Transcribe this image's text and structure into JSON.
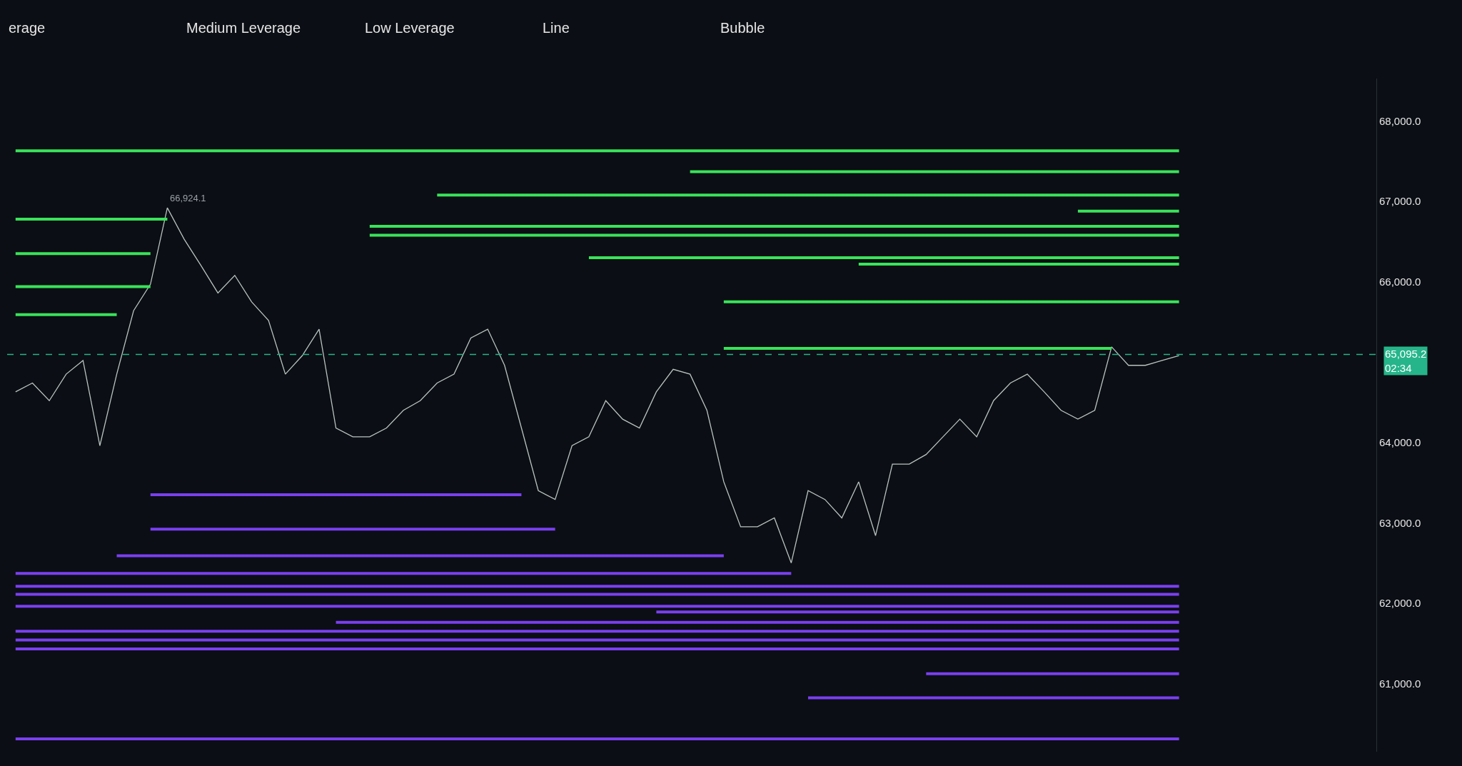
{
  "chart_data": {
    "type": "line",
    "categories": [
      null,
      null,
      null,
      null,
      null,
      null,
      null,
      null,
      null,
      null,
      null,
      null,
      null,
      null,
      null,
      null,
      null,
      null,
      null,
      null,
      null,
      null,
      null,
      null,
      null,
      null,
      null,
      null,
      null,
      null,
      null,
      null,
      null,
      null,
      null,
      null,
      null,
      null,
      null,
      null,
      null,
      null,
      null,
      null,
      null,
      null,
      null,
      null,
      null,
      null,
      null,
      null,
      null,
      null,
      null,
      null,
      null,
      null,
      null,
      null,
      null,
      null,
      null,
      null,
      null,
      null,
      null,
      null,
      null,
      null
    ],
    "series": [
      {
        "color": "#b9c4bf",
        "values": [
          64630,
          64740,
          64520,
          64850,
          65020,
          63960,
          64850,
          65640,
          65970,
          66920,
          66530,
          66200,
          65860,
          66080,
          65750,
          65520,
          64850,
          65080,
          65410,
          64180,
          64070,
          64070,
          64180,
          64400,
          64520,
          64740,
          64850,
          65300,
          65410,
          64960,
          64180,
          63400,
          63290,
          63960,
          64070,
          64520,
          64290,
          64180,
          64630,
          64910,
          64850,
          64400,
          63510,
          62950,
          62950,
          63060,
          62500,
          63400,
          63290,
          63060,
          63510,
          62840,
          63730,
          63730,
          63850,
          64070,
          64290,
          64070,
          64520,
          64740,
          64850,
          64630,
          64400,
          64290,
          64400,
          65190,
          64960,
          64960,
          65020,
          65080
        ]
      },
      {
        "color": "#39e35a",
        "values": [
          67630,
          67630,
          67630,
          67630,
          67630,
          67630,
          67630,
          67630,
          67630,
          67630,
          67630,
          67630,
          67630,
          67630,
          67630,
          67630,
          67630,
          67630,
          67630,
          67630,
          67630,
          67630,
          67630,
          67630,
          67630,
          67630,
          67630,
          67630,
          67630,
          67630,
          67630,
          67630,
          67630,
          67630,
          67630,
          67630,
          67630,
          67630,
          67630,
          67630,
          67630,
          67630,
          67630,
          67630,
          67630,
          67630,
          67630,
          67630,
          67630,
          67630,
          67630,
          67630,
          67630,
          67630,
          67630,
          67630,
          67630,
          67630,
          67630,
          67630,
          67630,
          67630,
          67630,
          67630,
          67630,
          67630,
          67630,
          67630,
          67630,
          67630
        ]
      },
      {
        "color": "#39e35a",
        "values": [
          null,
          null,
          null,
          null,
          null,
          null,
          null,
          null,
          null,
          null,
          null,
          null,
          null,
          null,
          null,
          null,
          null,
          null,
          null,
          null,
          null,
          null,
          null,
          null,
          null,
          null,
          null,
          null,
          null,
          null,
          null,
          null,
          null,
          null,
          null,
          null,
          null,
          null,
          null,
          null,
          67370,
          67370,
          67370,
          67370,
          67370,
          67370,
          67370,
          67370,
          67370,
          67370,
          67370,
          67370,
          67370,
          67370,
          67370,
          67370,
          67370,
          67370,
          67370,
          67370,
          67370,
          67370,
          67370,
          67370,
          67370,
          67370,
          67370,
          67370,
          67370,
          67370
        ]
      },
      {
        "color": "#39e35a",
        "values": [
          null,
          null,
          null,
          null,
          null,
          null,
          null,
          null,
          null,
          null,
          null,
          null,
          null,
          null,
          null,
          null,
          null,
          null,
          null,
          null,
          null,
          null,
          null,
          null,
          null,
          67080,
          67080,
          67080,
          67080,
          67080,
          67080,
          67080,
          67080,
          67080,
          67080,
          67080,
          67080,
          67080,
          67080,
          67080,
          67080,
          67080,
          67080,
          67080,
          67080,
          67080,
          67080,
          67080,
          67080,
          67080,
          67080,
          67080,
          67080,
          67080,
          67080,
          67080,
          67080,
          67080,
          67080,
          67080,
          67080,
          67080,
          67080,
          67080,
          67080,
          67080,
          67080,
          67080,
          67080,
          67080
        ]
      },
      {
        "color": "#39e35a",
        "values": [
          null,
          null,
          null,
          null,
          null,
          null,
          null,
          null,
          null,
          null,
          null,
          null,
          null,
          null,
          null,
          null,
          null,
          null,
          null,
          null,
          null,
          null,
          null,
          null,
          null,
          null,
          null,
          null,
          null,
          null,
          null,
          null,
          null,
          null,
          null,
          null,
          null,
          null,
          null,
          null,
          null,
          null,
          null,
          null,
          null,
          null,
          null,
          null,
          null,
          null,
          null,
          null,
          null,
          null,
          null,
          null,
          null,
          null,
          null,
          null,
          null,
          null,
          null,
          66880,
          66880,
          66880,
          66880,
          66880,
          66880,
          66880
        ]
      },
      {
        "color": "#39e35a",
        "values": [
          null,
          null,
          null,
          null,
          null,
          null,
          null,
          null,
          null,
          null,
          null,
          null,
          null,
          null,
          null,
          null,
          null,
          null,
          null,
          null,
          null,
          66690,
          66690,
          66690,
          66690,
          66690,
          66690,
          66690,
          66690,
          66690,
          66690,
          66690,
          66690,
          66690,
          66690,
          66690,
          66690,
          66690,
          66690,
          66690,
          66690,
          66690,
          66690,
          66690,
          66690,
          66690,
          66690,
          66690,
          66690,
          66690,
          66690,
          66690,
          66690,
          66690,
          66690,
          66690,
          66690,
          66690,
          66690,
          66690,
          66690,
          66690,
          66690,
          66690,
          66690,
          66690,
          66690,
          66690,
          66690,
          66690
        ]
      },
      {
        "color": "#39e35a",
        "values": [
          null,
          null,
          null,
          null,
          null,
          null,
          null,
          null,
          null,
          null,
          null,
          null,
          null,
          null,
          null,
          null,
          null,
          null,
          null,
          null,
          null,
          66580,
          66580,
          66580,
          66580,
          66580,
          66580,
          66580,
          66580,
          66580,
          66580,
          66580,
          66580,
          66580,
          66580,
          66580,
          66580,
          66580,
          66580,
          66580,
          66580,
          66580,
          66580,
          66580,
          66580,
          66580,
          66580,
          66580,
          66580,
          66580,
          66580,
          66580,
          66580,
          66580,
          66580,
          66580,
          66580,
          66580,
          66580,
          66580,
          66580,
          66580,
          66580,
          66580,
          66580,
          66580,
          66580,
          66580,
          66580,
          66580
        ]
      },
      {
        "color": "#39e35a",
        "values": [
          null,
          null,
          null,
          null,
          null,
          null,
          null,
          null,
          null,
          null,
          null,
          null,
          null,
          null,
          null,
          null,
          null,
          null,
          null,
          null,
          null,
          null,
          null,
          null,
          null,
          null,
          null,
          null,
          null,
          null,
          null,
          null,
          null,
          null,
          66300,
          66300,
          66300,
          66300,
          66300,
          66300,
          66300,
          66300,
          66300,
          66300,
          66300,
          66300,
          66300,
          66300,
          66300,
          66300,
          66300,
          66300,
          66300,
          66300,
          66300,
          66300,
          66300,
          66300,
          66300,
          66300,
          66300,
          66300,
          66300,
          66300,
          66300,
          66300,
          66300,
          66300,
          66300,
          66300
        ]
      },
      {
        "color": "#39e35a",
        "values": [
          null,
          null,
          null,
          null,
          null,
          null,
          null,
          null,
          null,
          null,
          null,
          null,
          null,
          null,
          null,
          null,
          null,
          null,
          null,
          null,
          null,
          null,
          null,
          null,
          null,
          null,
          null,
          null,
          null,
          null,
          null,
          null,
          null,
          null,
          null,
          null,
          null,
          null,
          null,
          null,
          null,
          null,
          null,
          null,
          null,
          null,
          null,
          null,
          null,
          null,
          66220,
          66220,
          66220,
          66220,
          66220,
          66220,
          66220,
          66220,
          66220,
          66220,
          66220,
          66220,
          66220,
          66220,
          66220,
          66220,
          66220,
          66220,
          66220,
          66220
        ]
      },
      {
        "color": "#39e35a",
        "values": [
          null,
          null,
          null,
          null,
          null,
          null,
          null,
          null,
          null,
          null,
          null,
          null,
          null,
          null,
          null,
          null,
          null,
          null,
          null,
          null,
          null,
          null,
          null,
          null,
          null,
          null,
          null,
          null,
          null,
          null,
          null,
          null,
          null,
          null,
          null,
          null,
          null,
          null,
          null,
          null,
          null,
          null,
          65750,
          65750,
          65750,
          65750,
          65750,
          65750,
          65750,
          65750,
          65750,
          65750,
          65750,
          65750,
          65750,
          65750,
          65750,
          65750,
          65750,
          65750,
          65750,
          65750,
          65750,
          65750,
          65750,
          65750,
          65750,
          65750,
          65750,
          65750
        ]
      },
      {
        "color": "#39e35a",
        "values": [
          null,
          null,
          null,
          null,
          null,
          null,
          null,
          null,
          null,
          null,
          null,
          null,
          null,
          null,
          null,
          null,
          null,
          null,
          null,
          null,
          null,
          null,
          null,
          null,
          null,
          null,
          null,
          null,
          null,
          null,
          null,
          null,
          null,
          null,
          null,
          null,
          null,
          null,
          null,
          null,
          null,
          null,
          65170,
          65170,
          65170,
          65170,
          65170,
          65170,
          65170,
          65170,
          65170,
          65170,
          65170,
          65170,
          65170,
          65170,
          65170,
          65170,
          65170,
          65170,
          65170,
          65170,
          65170,
          65170,
          65170,
          65170,
          null,
          null,
          null,
          null
        ]
      },
      {
        "color": "#39e35a",
        "values": [
          66780,
          66780,
          66780,
          66780,
          66780,
          66780,
          66780,
          66780,
          66780,
          66780,
          null,
          null,
          null,
          null,
          null,
          null,
          null,
          null,
          null,
          null,
          null,
          null,
          null,
          null,
          null,
          null,
          null,
          null,
          null,
          null,
          null,
          null,
          null,
          null,
          null,
          null,
          null,
          null,
          null,
          null,
          null,
          null,
          null,
          null,
          null,
          null,
          null,
          null,
          null,
          null,
          null,
          null,
          null,
          null,
          null,
          null,
          null,
          null,
          null,
          null,
          null,
          null,
          null,
          null,
          null,
          null,
          null,
          null,
          null,
          null
        ]
      },
      {
        "color": "#39e35a",
        "values": [
          66350,
          66350,
          66350,
          66350,
          66350,
          66350,
          66350,
          66350,
          66350,
          null,
          null,
          null,
          null,
          null,
          null,
          null,
          null,
          null,
          null,
          null,
          null,
          null,
          null,
          null,
          null,
          null,
          null,
          null,
          null,
          null,
          null,
          null,
          null,
          null,
          null,
          null,
          null,
          null,
          null,
          null,
          null,
          null,
          null,
          null,
          null,
          null,
          null,
          null,
          null,
          null,
          null,
          null,
          null,
          null,
          null,
          null,
          null,
          null,
          null,
          null,
          null,
          null,
          null,
          null,
          null,
          null,
          null,
          null,
          null,
          null
        ]
      },
      {
        "color": "#39e35a",
        "values": [
          65940,
          65940,
          65940,
          65940,
          65940,
          65940,
          65940,
          65940,
          65940,
          null,
          null,
          null,
          null,
          null,
          null,
          null,
          null,
          null,
          null,
          null,
          null,
          null,
          null,
          null,
          null,
          null,
          null,
          null,
          null,
          null,
          null,
          null,
          null,
          null,
          null,
          null,
          null,
          null,
          null,
          null,
          null,
          null,
          null,
          null,
          null,
          null,
          null,
          null,
          null,
          null,
          null,
          null,
          null,
          null,
          null,
          null,
          null,
          null,
          null,
          null,
          null,
          null,
          null,
          null,
          null,
          null,
          null,
          null,
          null,
          null
        ]
      },
      {
        "color": "#39e35a",
        "values": [
          65590,
          65590,
          65590,
          65590,
          65590,
          65590,
          65590,
          null,
          null,
          null,
          null,
          null,
          null,
          null,
          null,
          null,
          null,
          null,
          null,
          null,
          null,
          null,
          null,
          null,
          null,
          null,
          null,
          null,
          null,
          null,
          null,
          null,
          null,
          null,
          null,
          null,
          null,
          null,
          null,
          null,
          null,
          null,
          null,
          null,
          null,
          null,
          null,
          null,
          null,
          null,
          null,
          null,
          null,
          null,
          null,
          null,
          null,
          null,
          null,
          null,
          null,
          null,
          null,
          null,
          null,
          null,
          null,
          null,
          null,
          null
        ]
      },
      {
        "color": "#7a3ff0",
        "values": [
          null,
          null,
          null,
          null,
          null,
          null,
          null,
          null,
          63350,
          63350,
          63350,
          63350,
          63350,
          63350,
          63350,
          63350,
          63350,
          63350,
          63350,
          63350,
          63350,
          63350,
          63350,
          63350,
          63350,
          63350,
          63350,
          63350,
          63350,
          63350,
          63350,
          null,
          null,
          null,
          null,
          null,
          null,
          null,
          null,
          null,
          null,
          null,
          null,
          null,
          null,
          null,
          null,
          null,
          null,
          null,
          null,
          null,
          null,
          null,
          null,
          null,
          null,
          null,
          null,
          null,
          null,
          null,
          null,
          null,
          null,
          null,
          null,
          null,
          null,
          null
        ]
      },
      {
        "color": "#7a3ff0",
        "values": [
          null,
          null,
          null,
          null,
          null,
          null,
          null,
          null,
          62920,
          62920,
          62920,
          62920,
          62920,
          62920,
          62920,
          62920,
          62920,
          62920,
          62920,
          62920,
          62920,
          62920,
          62920,
          62920,
          62920,
          62920,
          62920,
          62920,
          62920,
          62920,
          62920,
          62920,
          62920,
          null,
          null,
          null,
          null,
          null,
          null,
          null,
          null,
          null,
          null,
          null,
          null,
          null,
          null,
          null,
          null,
          null,
          null,
          null,
          null,
          null,
          null,
          null,
          null,
          null,
          null,
          null,
          null,
          null,
          null,
          null,
          null,
          null,
          null,
          null,
          null,
          null
        ]
      },
      {
        "color": "#7a3ff0",
        "values": [
          null,
          null,
          null,
          null,
          null,
          null,
          62590,
          62590,
          62590,
          62590,
          62590,
          62590,
          62590,
          62590,
          62590,
          62590,
          62590,
          62590,
          62590,
          62590,
          62590,
          62590,
          62590,
          62590,
          62590,
          62590,
          62590,
          62590,
          62590,
          62590,
          62590,
          62590,
          62590,
          62590,
          62590,
          62590,
          62590,
          62590,
          62590,
          62590,
          62590,
          62590,
          62590,
          null,
          null,
          null,
          null,
          null,
          null,
          null,
          null,
          null,
          null,
          null,
          null,
          null,
          null,
          null,
          null,
          null,
          null,
          null,
          null,
          null,
          null,
          null,
          null,
          null,
          null,
          null
        ]
      },
      {
        "color": "#7a3ff0",
        "values": [
          62370,
          62370,
          62370,
          62370,
          62370,
          62370,
          62370,
          62370,
          62370,
          62370,
          62370,
          62370,
          62370,
          62370,
          62370,
          62370,
          62370,
          62370,
          62370,
          62370,
          62370,
          62370,
          62370,
          62370,
          62370,
          62370,
          62370,
          62370,
          62370,
          62370,
          62370,
          62370,
          62370,
          62370,
          62370,
          62370,
          62370,
          62370,
          62370,
          62370,
          62370,
          62370,
          62370,
          62370,
          62370,
          62370,
          62370,
          null,
          null,
          null,
          null,
          null,
          null,
          null,
          null,
          null,
          null,
          null,
          null,
          null,
          null,
          null,
          null,
          null,
          null,
          null,
          null,
          null,
          null,
          null
        ]
      },
      {
        "color": "#7a3ff0",
        "values": [
          62210,
          62210,
          62210,
          62210,
          62210,
          62210,
          62210,
          62210,
          62210,
          62210,
          62210,
          62210,
          62210,
          62210,
          62210,
          62210,
          62210,
          62210,
          62210,
          62210,
          62210,
          62210,
          62210,
          62210,
          62210,
          62210,
          62210,
          62210,
          62210,
          62210,
          62210,
          62210,
          62210,
          62210,
          62210,
          62210,
          62210,
          62210,
          62210,
          62210,
          62210,
          62210,
          62210,
          62210,
          62210,
          62210,
          62210,
          62210,
          62210,
          62210,
          62210,
          62210,
          62210,
          62210,
          62210,
          62210,
          62210,
          62210,
          62210,
          62210,
          62210,
          62210,
          62210,
          62210,
          62210,
          62210,
          62210,
          62210,
          62210,
          62210
        ]
      },
      {
        "color": "#7a3ff0",
        "values": [
          62110,
          62110,
          62110,
          62110,
          62110,
          62110,
          62110,
          62110,
          62110,
          62110,
          62110,
          62110,
          62110,
          62110,
          62110,
          62110,
          62110,
          62110,
          62110,
          62110,
          62110,
          62110,
          62110,
          62110,
          62110,
          62110,
          62110,
          62110,
          62110,
          62110,
          62110,
          62110,
          62110,
          62110,
          62110,
          62110,
          62110,
          62110,
          62110,
          62110,
          62110,
          62110,
          62110,
          62110,
          62110,
          62110,
          62110,
          62110,
          62110,
          62110,
          62110,
          62110,
          62110,
          62110,
          62110,
          62110,
          62110,
          62110,
          62110,
          62110,
          62110,
          62110,
          62110,
          62110,
          62110,
          62110,
          62110,
          62110,
          62110,
          62110
        ]
      },
      {
        "color": "#7a3ff0",
        "values": [
          61960,
          61960,
          61960,
          61960,
          61960,
          61960,
          61960,
          61960,
          61960,
          61960,
          61960,
          61960,
          61960,
          61960,
          61960,
          61960,
          61960,
          61960,
          61960,
          61960,
          61960,
          61960,
          61960,
          61960,
          61960,
          61960,
          61960,
          61960,
          61960,
          61960,
          61960,
          61960,
          61960,
          61960,
          61960,
          61960,
          61960,
          61960,
          61960,
          61960,
          61960,
          61960,
          61960,
          61960,
          61960,
          61960,
          61960,
          61960,
          61960,
          61960,
          61960,
          61960,
          61960,
          61960,
          61960,
          61960,
          61960,
          61960,
          61960,
          61960,
          61960,
          61960,
          61960,
          61960,
          61960,
          61960,
          61960,
          61960,
          61960,
          61960
        ]
      },
      {
        "color": "#7a3ff0",
        "values": [
          null,
          null,
          null,
          null,
          null,
          null,
          null,
          null,
          null,
          null,
          null,
          null,
          null,
          null,
          null,
          null,
          null,
          null,
          null,
          null,
          null,
          null,
          null,
          null,
          null,
          null,
          null,
          null,
          null,
          null,
          null,
          null,
          null,
          null,
          null,
          null,
          null,
          null,
          61890,
          61890,
          61890,
          61890,
          61890,
          61890,
          61890,
          61890,
          61890,
          61890,
          61890,
          61890,
          61890,
          61890,
          61890,
          61890,
          61890,
          61890,
          61890,
          61890,
          61890,
          61890,
          61890,
          61890,
          61890,
          61890,
          61890,
          61890,
          61890,
          61890,
          61890,
          61890
        ]
      },
      {
        "color": "#7a3ff0",
        "values": [
          null,
          null,
          null,
          null,
          null,
          null,
          null,
          null,
          null,
          null,
          null,
          null,
          null,
          null,
          null,
          null,
          null,
          null,
          null,
          61760,
          61760,
          61760,
          61760,
          61760,
          61760,
          61760,
          61760,
          61760,
          61760,
          61760,
          61760,
          61760,
          61760,
          61760,
          61760,
          61760,
          61760,
          61760,
          61760,
          61760,
          61760,
          61760,
          61760,
          61760,
          61760,
          61760,
          61760,
          61760,
          61760,
          61760,
          61760,
          61760,
          61760,
          61760,
          61760,
          61760,
          61760,
          61760,
          61760,
          61760,
          61760,
          61760,
          61760,
          61760,
          61760,
          61760,
          61760,
          61760,
          61760,
          61760
        ]
      },
      {
        "color": "#7a3ff0",
        "values": [
          61650,
          61650,
          61650,
          61650,
          61650,
          61650,
          61650,
          61650,
          61650,
          61650,
          61650,
          61650,
          61650,
          61650,
          61650,
          61650,
          61650,
          61650,
          61650,
          61650,
          61650,
          61650,
          61650,
          61650,
          61650,
          61650,
          61650,
          61650,
          61650,
          61650,
          61650,
          61650,
          61650,
          61650,
          61650,
          61650,
          61650,
          61650,
          61650,
          61650,
          61650,
          61650,
          61650,
          61650,
          61650,
          61650,
          61650,
          61650,
          61650,
          61650,
          61650,
          61650,
          61650,
          61650,
          61650,
          61650,
          61650,
          61650,
          61650,
          61650,
          61650,
          61650,
          61650,
          61650,
          61650,
          61650,
          61650,
          61650,
          61650,
          61650
        ]
      },
      {
        "color": "#7a3ff0",
        "values": [
          61540,
          61540,
          61540,
          61540,
          61540,
          61540,
          61540,
          61540,
          61540,
          61540,
          61540,
          61540,
          61540,
          61540,
          61540,
          61540,
          61540,
          61540,
          61540,
          61540,
          61540,
          61540,
          61540,
          61540,
          61540,
          61540,
          61540,
          61540,
          61540,
          61540,
          61540,
          61540,
          61540,
          61540,
          61540,
          61540,
          61540,
          61540,
          61540,
          61540,
          61540,
          61540,
          61540,
          61540,
          61540,
          61540,
          61540,
          61540,
          61540,
          61540,
          61540,
          61540,
          61540,
          61540,
          61540,
          61540,
          61540,
          61540,
          61540,
          61540,
          61540,
          61540,
          61540,
          61540,
          61540,
          61540,
          61540,
          61540,
          61540,
          61540
        ]
      },
      {
        "color": "#7a3ff0",
        "values": [
          61430,
          61430,
          61430,
          61430,
          61430,
          61430,
          61430,
          61430,
          61430,
          61430,
          61430,
          61430,
          61430,
          61430,
          61430,
          61430,
          61430,
          61430,
          61430,
          61430,
          61430,
          61430,
          61430,
          61430,
          61430,
          61430,
          61430,
          61430,
          61430,
          61430,
          61430,
          61430,
          61430,
          61430,
          61430,
          61430,
          61430,
          61430,
          61430,
          61430,
          61430,
          61430,
          61430,
          61430,
          61430,
          61430,
          61430,
          61430,
          61430,
          61430,
          61430,
          61430,
          61430,
          61430,
          61430,
          61430,
          61430,
          61430,
          61430,
          61430,
          61430,
          61430,
          61430,
          61430,
          61430,
          61430,
          61430,
          61430,
          61430,
          61430
        ]
      },
      {
        "color": "#7a3ff0",
        "values": [
          null,
          null,
          null,
          null,
          null,
          null,
          null,
          null,
          null,
          null,
          null,
          null,
          null,
          null,
          null,
          null,
          null,
          null,
          null,
          null,
          null,
          null,
          null,
          null,
          null,
          null,
          null,
          null,
          null,
          null,
          null,
          null,
          null,
          null,
          null,
          null,
          null,
          null,
          null,
          null,
          null,
          null,
          null,
          null,
          null,
          null,
          null,
          null,
          null,
          null,
          null,
          null,
          null,
          null,
          61120,
          61120,
          61120,
          61120,
          61120,
          61120,
          61120,
          61120,
          61120,
          61120,
          61120,
          61120,
          61120,
          61120,
          61120,
          61120
        ]
      },
      {
        "color": "#7a3ff0",
        "values": [
          null,
          null,
          null,
          null,
          null,
          null,
          null,
          null,
          null,
          null,
          null,
          null,
          null,
          null,
          null,
          null,
          null,
          null,
          null,
          null,
          null,
          null,
          null,
          null,
          null,
          null,
          null,
          null,
          null,
          null,
          null,
          null,
          null,
          null,
          null,
          null,
          null,
          null,
          null,
          null,
          null,
          null,
          null,
          null,
          null,
          null,
          null,
          60820,
          60820,
          60820,
          60820,
          60820,
          60820,
          60820,
          60820,
          60820,
          60820,
          60820,
          60820,
          60820,
          60820,
          60820,
          60820,
          60820,
          60820,
          60820,
          60820,
          60820,
          60820,
          60820
        ]
      },
      {
        "color": "#7a3ff0",
        "values": [
          60310,
          60310,
          60310,
          60310,
          60310,
          60310,
          60310,
          60310,
          60310,
          60310,
          60310,
          60310,
          60310,
          60310,
          60310,
          60310,
          60310,
          60310,
          60310,
          60310,
          60310,
          60310,
          60310,
          60310,
          60310,
          60310,
          60310,
          60310,
          60310,
          60310,
          60310,
          60310,
          60310,
          60310,
          60310,
          60310,
          60310,
          60310,
          60310,
          60310,
          60310,
          60310,
          60310,
          60310,
          60310,
          60310,
          60310,
          60310,
          60310,
          60310,
          60310,
          60310,
          60310,
          60310,
          60310,
          60310,
          60310,
          60310,
          60310,
          60310,
          60310,
          60310,
          60310,
          60310,
          60310,
          60310,
          60310,
          60310,
          60310,
          60310
        ]
      }
    ],
    "ylim": [
      60150,
      68530
    ],
    "yticks": [
      {
        "value": 61000,
        "label": "61,000.0"
      },
      {
        "value": 62000,
        "label": "62,000.0"
      },
      {
        "value": 63000,
        "label": "63,000.0"
      },
      {
        "value": 64000,
        "label": "64,000.0"
      },
      {
        "value": 66000,
        "label": "66,000.0"
      },
      {
        "value": 67000,
        "label": "67,000.0"
      },
      {
        "value": 68000,
        "label": "68,000.0"
      }
    ],
    "tick_labels": "y",
    "grid": false,
    "ref_lines": [
      {
        "axis": "y",
        "value": 65095.2,
        "label": "65,095.2\n02:34",
        "color": "#26b58a",
        "line_style": "dashed"
      }
    ],
    "annotations": [
      "erage",
      "Medium Leverage",
      "Low Leverage",
      "Line",
      "Bubble",
      "66,924.1"
    ]
  }
}
